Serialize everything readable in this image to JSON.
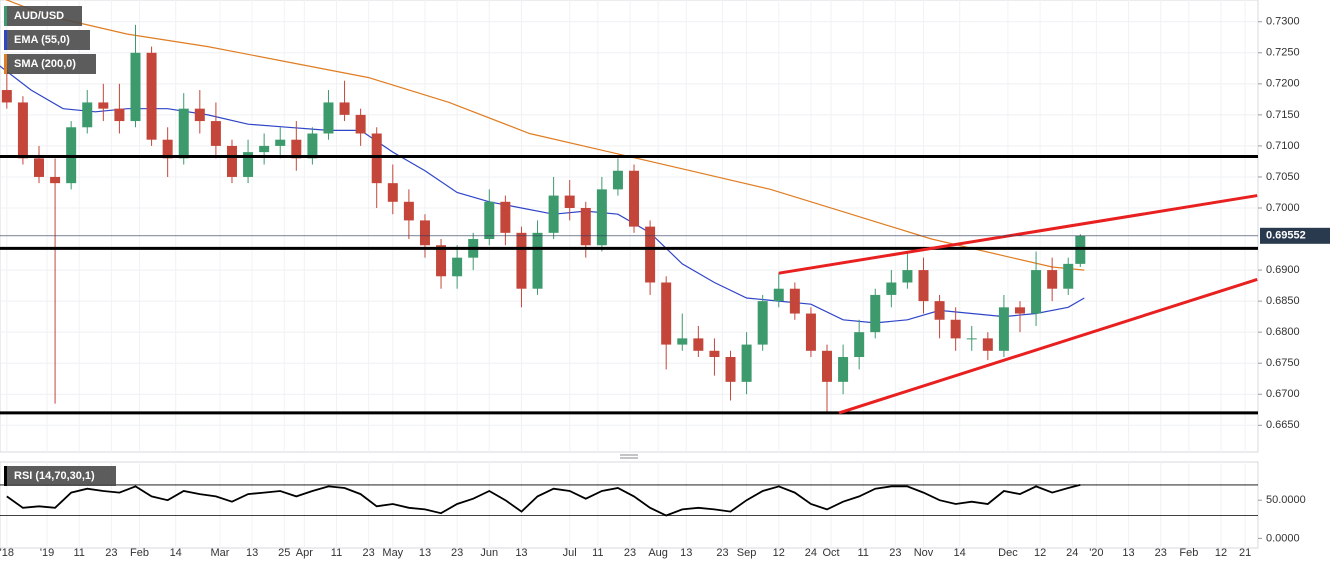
{
  "chart_data": {
    "type": "candlestick",
    "title": "AUD/USD",
    "grid": true,
    "up_color": "#3d9a6c",
    "down_color": "#c4463a",
    "xlim": [
      -11.7,
      301.2
    ],
    "xticks": [
      {
        "value": -10,
        "label": "'18"
      },
      {
        "value": 0,
        "label": "'19"
      },
      {
        "value": 8,
        "label": "11"
      },
      {
        "value": 16,
        "label": "23"
      },
      {
        "value": 23,
        "label": "Feb"
      },
      {
        "value": 32,
        "label": "14"
      },
      {
        "value": 43,
        "label": "Mar"
      },
      {
        "value": 51,
        "label": "13"
      },
      {
        "value": 59,
        "label": "25"
      },
      {
        "value": 64,
        "label": "Apr"
      },
      {
        "value": 72,
        "label": "11"
      },
      {
        "value": 80,
        "label": "23"
      },
      {
        "value": 86,
        "label": "May"
      },
      {
        "value": 94,
        "label": "13"
      },
      {
        "value": 102,
        "label": "23"
      },
      {
        "value": 110,
        "label": "Jun"
      },
      {
        "value": 118,
        "label": "13"
      },
      {
        "value": 130,
        "label": "Jul"
      },
      {
        "value": 137,
        "label": "11"
      },
      {
        "value": 145,
        "label": "23"
      },
      {
        "value": 152,
        "label": "Aug"
      },
      {
        "value": 159,
        "label": "13"
      },
      {
        "value": 168,
        "label": "23"
      },
      {
        "value": 174,
        "label": "Sep"
      },
      {
        "value": 182,
        "label": "12"
      },
      {
        "value": 190,
        "label": "24"
      },
      {
        "value": 195,
        "label": "Oct"
      },
      {
        "value": 203,
        "label": "11"
      },
      {
        "value": 211,
        "label": "23"
      },
      {
        "value": 218,
        "label": "Nov"
      },
      {
        "value": 227,
        "label": "14"
      },
      {
        "value": 239,
        "label": "Dec"
      },
      {
        "value": 247,
        "label": "12"
      },
      {
        "value": 255,
        "label": "24"
      },
      {
        "value": 261,
        "label": "'20"
      },
      {
        "value": 269,
        "label": "13"
      },
      {
        "value": 277,
        "label": "23"
      },
      {
        "value": 284,
        "label": "Feb"
      },
      {
        "value": 292,
        "label": "12"
      },
      {
        "value": 298,
        "label": "21"
      }
    ],
    "ylim": [
      0.6607,
      0.7335
    ],
    "yticks": [
      {
        "value": 0.73,
        "label": "0.7300"
      },
      {
        "value": 0.725,
        "label": "0.7250"
      },
      {
        "value": 0.72,
        "label": "0.7200"
      },
      {
        "value": 0.715,
        "label": "0.7150"
      },
      {
        "value": 0.71,
        "label": "0.7100"
      },
      {
        "value": 0.705,
        "label": "0.7050"
      },
      {
        "value": 0.7,
        "label": "0.7000"
      },
      {
        "value": 0.69,
        "label": "0.6900"
      },
      {
        "value": 0.685,
        "label": "0.6850"
      },
      {
        "value": 0.68,
        "label": "0.6800"
      },
      {
        "value": 0.675,
        "label": "0.6750"
      },
      {
        "value": 0.67,
        "label": "0.6700"
      },
      {
        "value": 0.665,
        "label": "0.6650"
      }
    ],
    "candles": {
      "x": [
        -10,
        -6,
        -2,
        2,
        6,
        10,
        14,
        18,
        22,
        26,
        30,
        34,
        38,
        42,
        46,
        50,
        54,
        58,
        62,
        66,
        70,
        74,
        78,
        82,
        86,
        90,
        94,
        98,
        102,
        106,
        110,
        114,
        118,
        122,
        126,
        130,
        134,
        138,
        142,
        146,
        150,
        154,
        158,
        162,
        166,
        170,
        174,
        178,
        182,
        186,
        190,
        194,
        198,
        202,
        206,
        210,
        214,
        218,
        222,
        226,
        230,
        234,
        238,
        242,
        246,
        250,
        254,
        257
      ],
      "open": [
        0.719,
        0.717,
        0.708,
        0.705,
        0.704,
        0.713,
        0.717,
        0.716,
        0.714,
        0.725,
        0.711,
        0.708,
        0.716,
        0.714,
        0.71,
        0.705,
        0.709,
        0.71,
        0.711,
        0.708,
        0.712,
        0.717,
        0.715,
        0.712,
        0.704,
        0.701,
        0.698,
        0.694,
        0.689,
        0.692,
        0.695,
        0.701,
        0.696,
        0.687,
        0.696,
        0.702,
        0.7,
        0.694,
        0.703,
        0.706,
        0.697,
        0.688,
        0.678,
        0.679,
        0.677,
        0.676,
        0.672,
        0.678,
        0.685,
        0.687,
        0.683,
        0.677,
        0.672,
        0.676,
        0.68,
        0.686,
        0.688,
        0.69,
        0.685,
        0.682,
        0.679,
        0.679,
        0.677,
        0.684,
        0.683,
        0.69,
        0.687,
        0.691
      ],
      "high": [
        0.723,
        0.718,
        0.71,
        0.708,
        0.714,
        0.719,
        0.72,
        0.72,
        0.7295,
        0.726,
        0.713,
        0.7185,
        0.719,
        0.717,
        0.711,
        0.711,
        0.712,
        0.713,
        0.714,
        0.713,
        0.719,
        0.7205,
        0.716,
        0.713,
        0.707,
        0.703,
        0.699,
        0.695,
        0.694,
        0.696,
        0.703,
        0.702,
        0.697,
        0.698,
        0.705,
        0.7045,
        0.701,
        0.705,
        0.708,
        0.707,
        0.698,
        0.689,
        0.683,
        0.681,
        0.679,
        0.677,
        0.68,
        0.686,
        0.6895,
        0.688,
        0.684,
        0.678,
        0.678,
        0.682,
        0.687,
        0.69,
        0.693,
        0.692,
        0.686,
        0.684,
        0.681,
        0.68,
        0.686,
        0.685,
        0.693,
        0.692,
        0.692,
        0.6958
      ],
      "low": [
        0.716,
        0.707,
        0.704,
        0.6685,
        0.703,
        0.712,
        0.714,
        0.712,
        0.713,
        0.71,
        0.705,
        0.707,
        0.712,
        0.708,
        0.704,
        0.704,
        0.707,
        0.708,
        0.706,
        0.707,
        0.711,
        0.714,
        0.71,
        0.7,
        0.699,
        0.695,
        0.692,
        0.687,
        0.687,
        0.69,
        0.694,
        0.694,
        0.684,
        0.686,
        0.695,
        0.698,
        0.692,
        0.693,
        0.702,
        0.696,
        0.686,
        0.674,
        0.677,
        0.676,
        0.673,
        0.669,
        0.67,
        0.677,
        0.684,
        0.682,
        0.676,
        0.6672,
        0.67,
        0.674,
        0.679,
        0.684,
        0.687,
        0.683,
        0.679,
        0.677,
        0.677,
        0.6755,
        0.676,
        0.68,
        0.681,
        0.685,
        0.686,
        0.6905
      ],
      "close": [
        0.717,
        0.708,
        0.705,
        0.704,
        0.713,
        0.717,
        0.716,
        0.714,
        0.725,
        0.711,
        0.708,
        0.716,
        0.714,
        0.71,
        0.705,
        0.709,
        0.71,
        0.711,
        0.708,
        0.712,
        0.717,
        0.715,
        0.712,
        0.704,
        0.701,
        0.698,
        0.694,
        0.689,
        0.692,
        0.695,
        0.701,
        0.696,
        0.687,
        0.696,
        0.702,
        0.7,
        0.694,
        0.703,
        0.706,
        0.697,
        0.688,
        0.678,
        0.679,
        0.677,
        0.676,
        0.672,
        0.678,
        0.685,
        0.687,
        0.683,
        0.677,
        0.672,
        0.676,
        0.68,
        0.686,
        0.688,
        0.69,
        0.685,
        0.682,
        0.679,
        0.679,
        0.677,
        0.684,
        0.683,
        0.69,
        0.687,
        0.691,
        0.6955
      ]
    },
    "series": [
      {
        "name": "EMA (55,0)",
        "color": "#2f45c8",
        "x": [
          -12,
          -4,
          4,
          12,
          20,
          30,
          40,
          50,
          60,
          70,
          78,
          86,
          94,
          102,
          110,
          118,
          126,
          134,
          142,
          150,
          158,
          166,
          174,
          182,
          190,
          198,
          206,
          214,
          222,
          230,
          238,
          246,
          254,
          258
        ],
        "values": [
          0.723,
          0.719,
          0.716,
          0.7155,
          0.716,
          0.716,
          0.715,
          0.7135,
          0.713,
          0.7125,
          0.7125,
          0.709,
          0.706,
          0.7025,
          0.701,
          0.7,
          0.699,
          0.6995,
          0.699,
          0.696,
          0.691,
          0.688,
          0.6855,
          0.685,
          0.6845,
          0.682,
          0.6815,
          0.682,
          0.6835,
          0.683,
          0.6825,
          0.683,
          0.684,
          0.6855
        ]
      },
      {
        "name": "SMA (200,0)",
        "color": "#e07d22",
        "x": [
          -12,
          0,
          20,
          40,
          60,
          80,
          100,
          120,
          140,
          160,
          180,
          200,
          220,
          240,
          250,
          258
        ],
        "values": [
          0.734,
          0.731,
          0.728,
          0.726,
          0.7235,
          0.721,
          0.717,
          0.712,
          0.709,
          0.706,
          0.703,
          0.699,
          0.695,
          0.692,
          0.6905,
          0.69
        ]
      }
    ],
    "levels": [
      0.7083,
      0.6935,
      0.667
    ],
    "trendlines": [
      {
        "x": [
          182,
          301
        ],
        "values": [
          0.6895,
          0.702
        ]
      },
      {
        "x": [
          197,
          301
        ],
        "values": [
          0.667,
          0.6885
        ]
      }
    ],
    "last_price": 0.69552,
    "rsi": {
      "name": "RSI (14,70,30,1)",
      "ylim": [
        -12.6,
        100
      ],
      "yticks": [
        {
          "value": 50,
          "label": "50.0000"
        },
        {
          "value": 0,
          "label": "0.0000"
        }
      ],
      "levels": [
        70,
        30
      ],
      "x": [
        -10,
        -6,
        -2,
        2,
        6,
        10,
        14,
        18,
        22,
        26,
        30,
        34,
        38,
        42,
        46,
        50,
        54,
        58,
        62,
        66,
        70,
        74,
        78,
        82,
        86,
        90,
        94,
        98,
        102,
        106,
        110,
        114,
        118,
        122,
        126,
        130,
        134,
        138,
        142,
        146,
        150,
        154,
        158,
        162,
        166,
        170,
        174,
        178,
        182,
        186,
        190,
        194,
        198,
        202,
        206,
        210,
        214,
        218,
        222,
        226,
        230,
        234,
        238,
        242,
        246,
        250,
        254,
        257
      ],
      "values": [
        55,
        40,
        42,
        40,
        60,
        65,
        62,
        60,
        68,
        55,
        50,
        62,
        58,
        55,
        48,
        58,
        60,
        62,
        55,
        62,
        68,
        66,
        58,
        42,
        45,
        40,
        38,
        33,
        45,
        52,
        62,
        50,
        35,
        55,
        65,
        62,
        52,
        62,
        66,
        55,
        40,
        30,
        38,
        40,
        38,
        35,
        50,
        62,
        68,
        60,
        45,
        38,
        48,
        55,
        65,
        68,
        68,
        60,
        50,
        45,
        48,
        45,
        62,
        58,
        68,
        60,
        66,
        70
      ]
    }
  }
}
